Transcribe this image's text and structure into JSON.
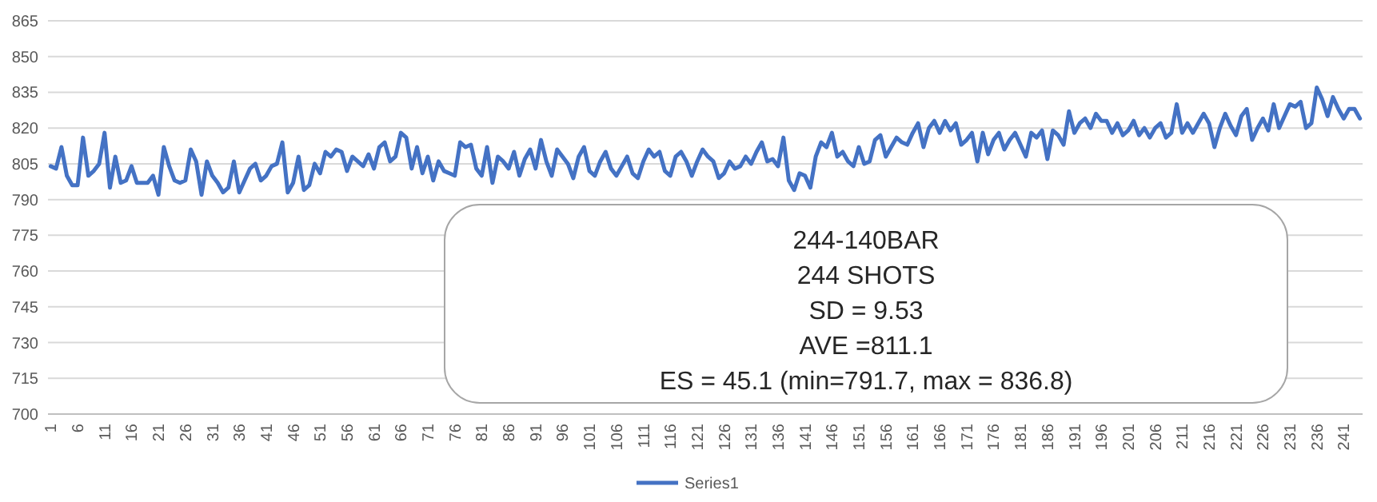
{
  "chart_data": {
    "type": "line",
    "categories": [
      "1",
      null,
      null,
      null,
      null,
      "6",
      null,
      null,
      null,
      null,
      "11",
      null,
      null,
      null,
      null,
      "16",
      null,
      null,
      null,
      null,
      "21",
      null,
      null,
      null,
      null,
      "26",
      null,
      null,
      null,
      null,
      "31",
      null,
      null,
      null,
      null,
      "36",
      null,
      null,
      null,
      null,
      "41",
      null,
      null,
      null,
      null,
      "46",
      null,
      null,
      null,
      null,
      "51",
      null,
      null,
      null,
      null,
      "56",
      null,
      null,
      null,
      null,
      "61",
      null,
      null,
      null,
      null,
      "66",
      null,
      null,
      null,
      null,
      "71",
      null,
      null,
      null,
      null,
      "76",
      null,
      null,
      null,
      null,
      "81",
      null,
      null,
      null,
      null,
      "86",
      null,
      null,
      null,
      null,
      "91",
      null,
      null,
      null,
      null,
      "96",
      null,
      null,
      null,
      null,
      "101",
      null,
      null,
      null,
      null,
      "106",
      null,
      null,
      null,
      null,
      "111",
      null,
      null,
      null,
      null,
      "116",
      null,
      null,
      null,
      null,
      "121",
      null,
      null,
      null,
      null,
      "126",
      null,
      null,
      null,
      null,
      "131",
      null,
      null,
      null,
      null,
      "136",
      null,
      null,
      null,
      null,
      "141",
      null,
      null,
      null,
      null,
      "146",
      null,
      null,
      null,
      null,
      "151",
      null,
      null,
      null,
      null,
      "156",
      null,
      null,
      null,
      null,
      "161",
      null,
      null,
      null,
      null,
      "166",
      null,
      null,
      null,
      null,
      "171",
      null,
      null,
      null,
      null,
      "176",
      null,
      null,
      null,
      null,
      "181",
      null,
      null,
      null,
      null,
      "186",
      null,
      null,
      null,
      null,
      "191",
      null,
      null,
      null,
      null,
      "196",
      null,
      null,
      null,
      null,
      "201",
      null,
      null,
      null,
      null,
      "206",
      null,
      null,
      null,
      null,
      "211",
      null,
      null,
      null,
      null,
      "216",
      null,
      null,
      null,
      null,
      "221",
      null,
      null,
      null,
      null,
      "226",
      null,
      null,
      null,
      null,
      "231",
      null,
      null,
      null,
      null,
      "236",
      null,
      null,
      null,
      null,
      "241",
      null,
      null,
      null
    ],
    "series": [
      {
        "name": "Series1",
        "color": "#4472c4",
        "values": [
          804,
          803,
          812,
          800,
          796,
          796,
          816,
          800,
          802,
          805,
          818,
          795,
          808,
          797,
          798,
          804,
          797,
          797,
          797,
          800,
          792,
          812,
          804,
          798,
          797,
          798,
          811,
          806,
          792,
          806,
          800,
          797,
          793,
          795,
          806,
          793,
          798,
          803,
          805,
          798,
          800,
          804,
          805,
          814,
          793,
          797,
          808,
          794,
          796,
          805,
          801,
          810,
          808,
          811,
          810,
          802,
          808,
          806,
          804,
          809,
          803,
          812,
          814,
          806,
          808,
          818,
          816,
          803,
          812,
          801,
          808,
          798,
          806,
          802,
          801,
          800,
          814,
          812,
          813,
          803,
          800,
          812,
          797,
          808,
          806,
          803,
          810,
          800,
          807,
          811,
          803,
          815,
          806,
          800,
          811,
          808,
          805,
          799,
          808,
          812,
          802,
          800,
          806,
          810,
          803,
          800,
          804,
          808,
          801,
          799,
          806,
          811,
          808,
          810,
          802,
          800,
          808,
          810,
          806,
          800,
          806,
          811,
          808,
          806,
          799,
          801,
          806,
          803,
          804,
          808,
          805,
          810,
          814,
          806,
          807,
          804,
          816,
          798,
          794,
          801,
          800,
          795,
          808,
          814,
          812,
          818,
          808,
          810,
          806,
          804,
          812,
          805,
          806,
          815,
          817,
          808,
          812,
          816,
          814,
          813,
          818,
          822,
          812,
          820,
          823,
          818,
          823,
          819,
          822,
          813,
          815,
          818,
          806,
          818,
          809,
          815,
          818,
          811,
          815,
          818,
          813,
          808,
          818,
          816,
          819,
          807,
          819,
          817,
          813,
          827,
          818,
          822,
          824,
          820,
          826,
          823,
          823,
          818,
          822,
          817,
          819,
          823,
          817,
          820,
          816,
          820,
          822,
          816,
          818,
          830,
          818,
          822,
          818,
          822,
          826,
          822,
          812,
          820,
          826,
          821,
          817,
          825,
          828,
          815,
          820,
          824,
          819,
          830,
          820,
          825,
          830,
          829,
          831,
          820,
          822,
          837,
          832,
          825,
          833,
          828,
          824,
          828,
          828,
          824
        ]
      }
    ],
    "ylim": [
      700,
      865
    ],
    "yticks": [
      700,
      715,
      730,
      745,
      760,
      775,
      790,
      805,
      820,
      835,
      850,
      865
    ],
    "grid": "y",
    "legend": "bottom",
    "marker": "none",
    "line_style": "solid",
    "annotations": [
      "244-140BAR",
      "244 SHOTS",
      "SD = 9.53",
      "AVE =811.1",
      "ES = 45.1 (min=791.7, max = 836.8)"
    ]
  }
}
